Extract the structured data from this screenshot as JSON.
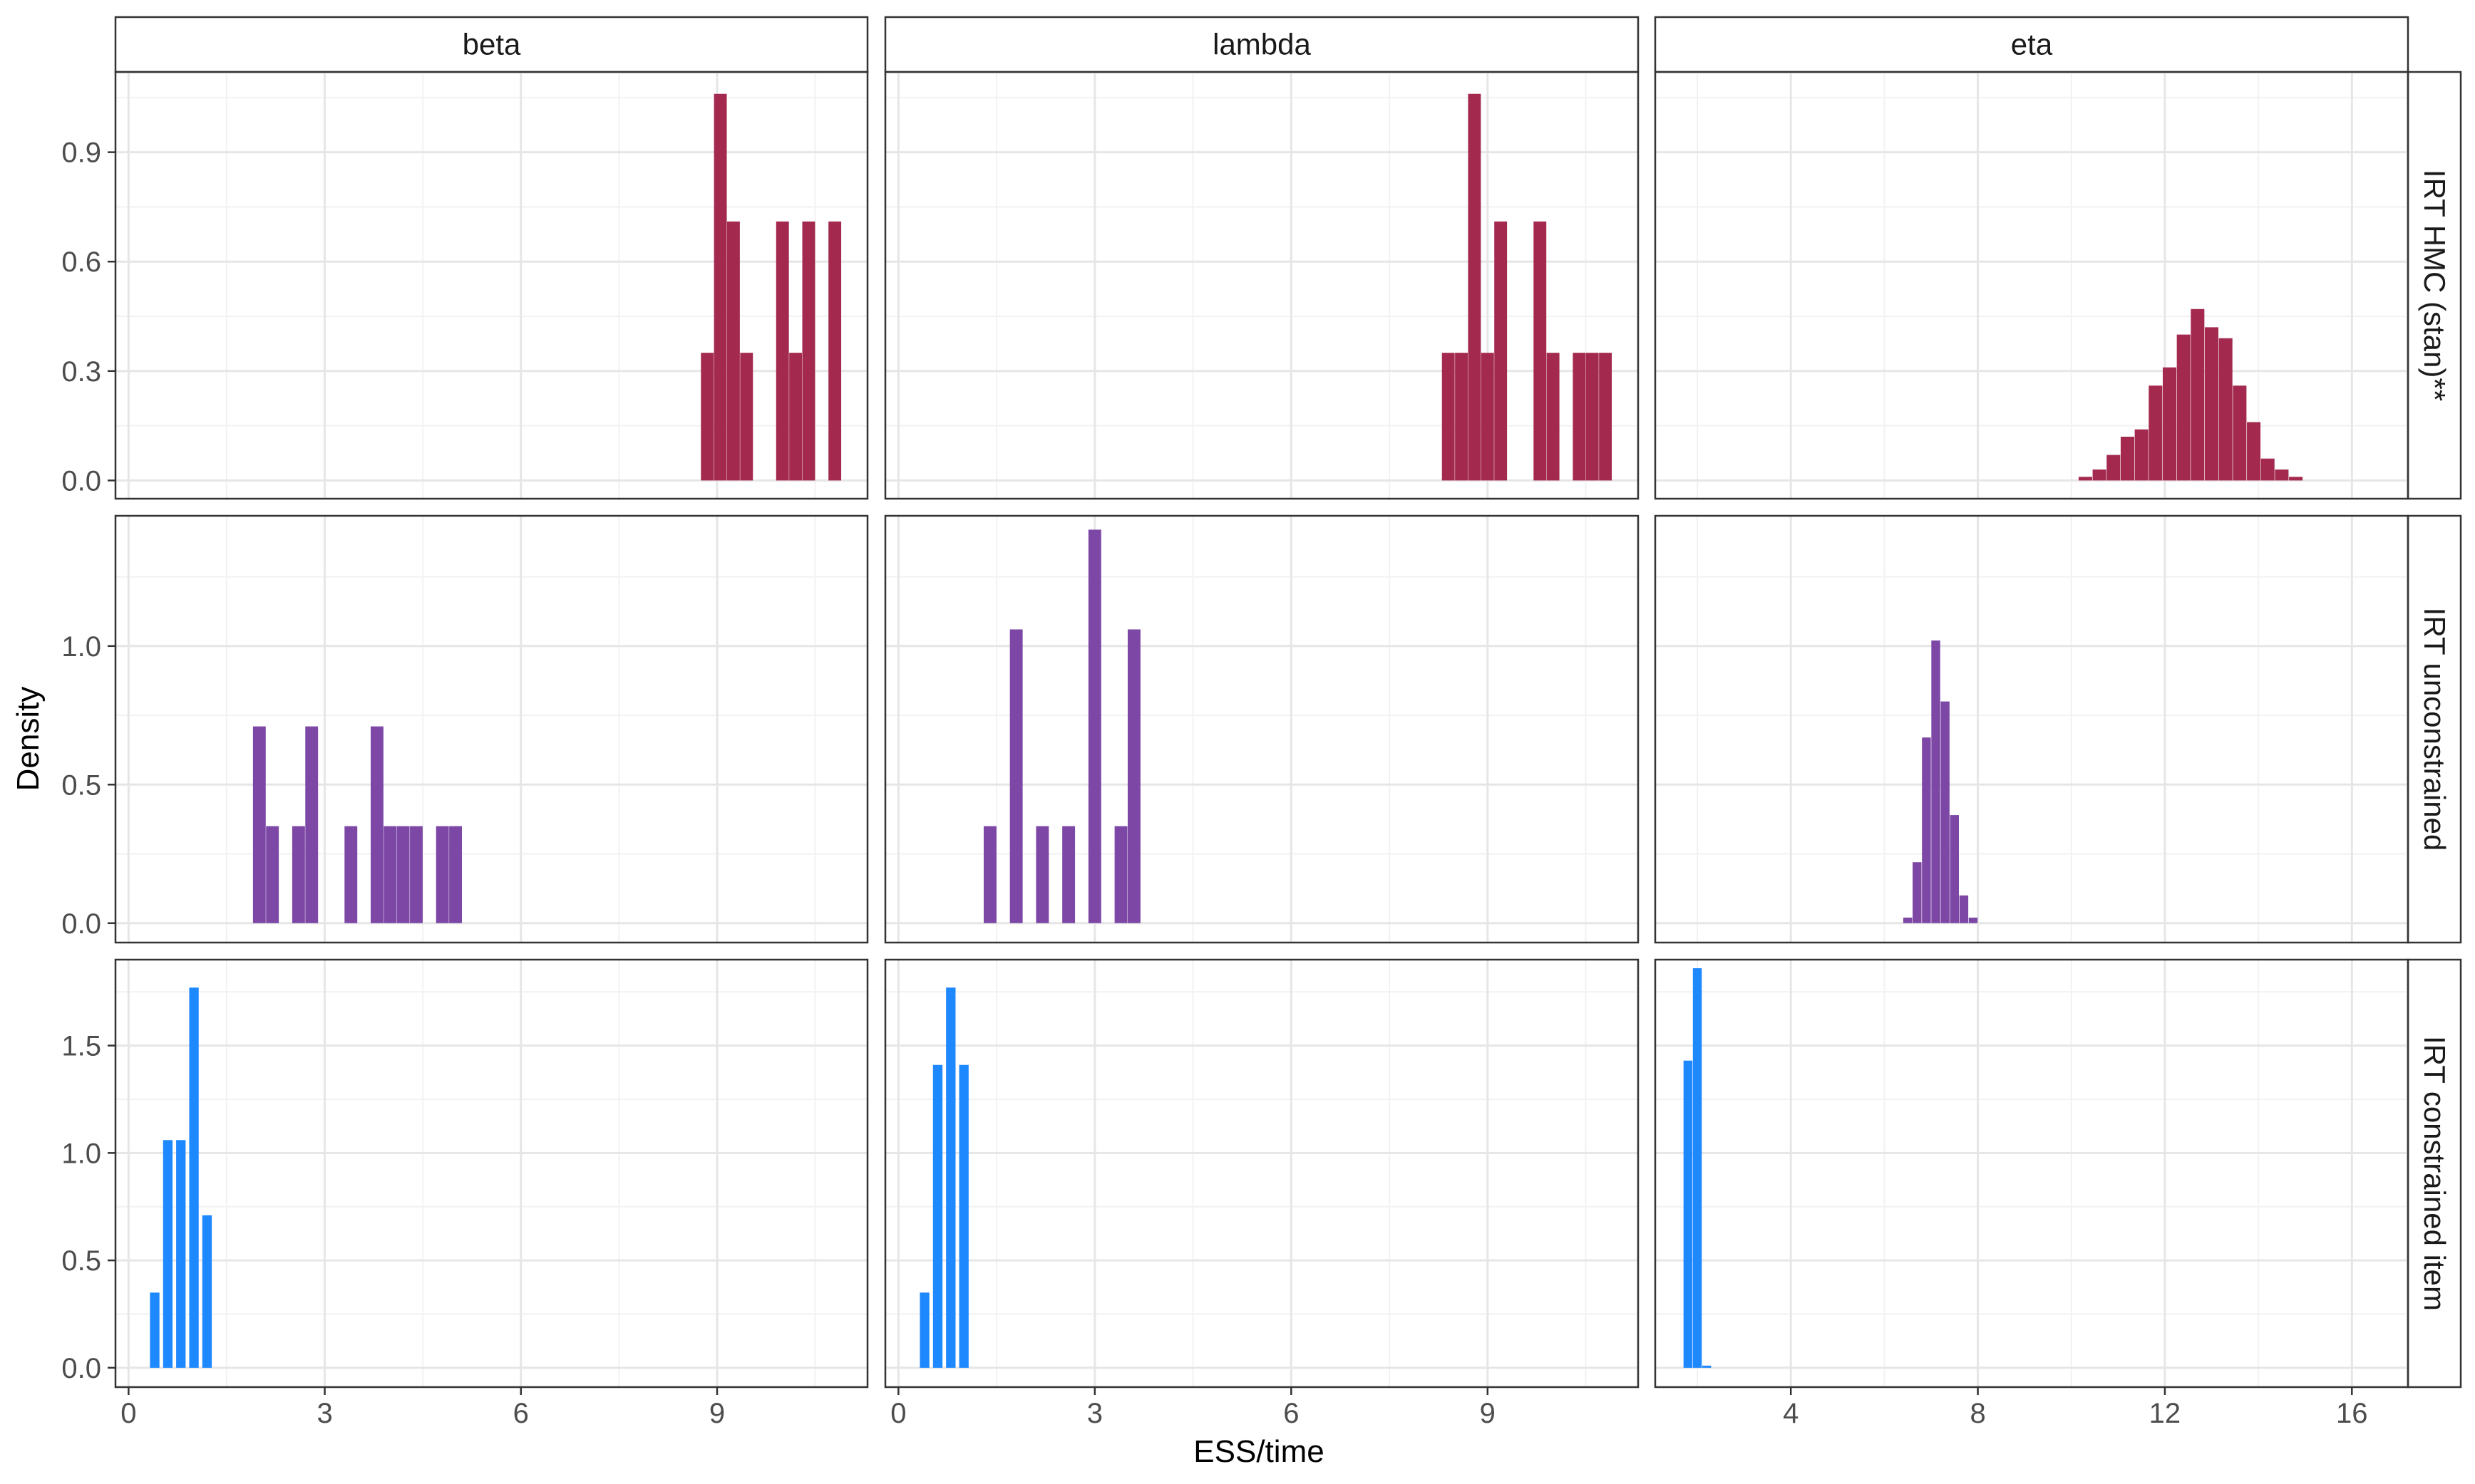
{
  "chart_data": {
    "type": "bar",
    "xlabel": "ESS/time",
    "ylabel": "Density",
    "grid": true,
    "legend": "none",
    "columns": [
      {
        "label": "beta",
        "xlim": [
          -0.2,
          11.3
        ],
        "xticks": [
          0,
          3,
          6,
          9
        ]
      },
      {
        "label": "lambda",
        "xlim": [
          -0.2,
          11.3
        ],
        "xticks": [
          0,
          3,
          6,
          9
        ]
      },
      {
        "label": "eta",
        "xlim": [
          1.1,
          17.2
        ],
        "xticks": [
          4,
          8,
          12,
          16
        ]
      }
    ],
    "rows": [
      {
        "label": "IRT HMC (stan)**",
        "color": "#A3294F",
        "ylim": [
          -0.05,
          1.12
        ],
        "yticks": [
          "0.0",
          "0.3",
          "0.6",
          "0.9"
        ]
      },
      {
        "label": "IRT unconstrained",
        "color": "#7D47A6",
        "ylim": [
          -0.07,
          1.47
        ],
        "yticks": [
          "0.0",
          "0.5",
          "1.0"
        ]
      },
      {
        "label": "IRT constrained item",
        "color": "#1E88FF",
        "ylim": [
          -0.09,
          1.9
        ],
        "yticks": [
          "0.0",
          "0.5",
          "1.0",
          "1.5"
        ]
      }
    ],
    "panels": [
      {
        "row": 0,
        "col": 0,
        "binwidth": 0.195,
        "bars": [
          {
            "x": 8.85,
            "y": 0.35
          },
          {
            "x": 9.05,
            "y": 1.06
          },
          {
            "x": 9.25,
            "y": 0.71
          },
          {
            "x": 9.45,
            "y": 0.35
          },
          {
            "x": 10.0,
            "y": 0.71
          },
          {
            "x": 10.2,
            "y": 0.35
          },
          {
            "x": 10.4,
            "y": 0.71
          },
          {
            "x": 10.8,
            "y": 0.71
          }
        ]
      },
      {
        "row": 0,
        "col": 1,
        "binwidth": 0.195,
        "bars": [
          {
            "x": 8.4,
            "y": 0.35
          },
          {
            "x": 8.6,
            "y": 0.35
          },
          {
            "x": 8.8,
            "y": 1.06
          },
          {
            "x": 9.0,
            "y": 0.35
          },
          {
            "x": 9.2,
            "y": 0.71
          },
          {
            "x": 9.8,
            "y": 0.71
          },
          {
            "x": 10.0,
            "y": 0.35
          },
          {
            "x": 10.4,
            "y": 0.35
          },
          {
            "x": 10.6,
            "y": 0.35
          },
          {
            "x": 10.8,
            "y": 0.35
          }
        ]
      },
      {
        "row": 0,
        "col": 2,
        "binwidth": 0.29,
        "bars": [
          {
            "x": 10.3,
            "y": 0.01
          },
          {
            "x": 10.6,
            "y": 0.03
          },
          {
            "x": 10.9,
            "y": 0.07
          },
          {
            "x": 11.2,
            "y": 0.12
          },
          {
            "x": 11.5,
            "y": 0.14
          },
          {
            "x": 11.8,
            "y": 0.26
          },
          {
            "x": 12.1,
            "y": 0.31
          },
          {
            "x": 12.4,
            "y": 0.4
          },
          {
            "x": 12.7,
            "y": 0.47
          },
          {
            "x": 13.0,
            "y": 0.42
          },
          {
            "x": 13.3,
            "y": 0.39
          },
          {
            "x": 13.6,
            "y": 0.26
          },
          {
            "x": 13.9,
            "y": 0.16
          },
          {
            "x": 14.2,
            "y": 0.06
          },
          {
            "x": 14.5,
            "y": 0.03
          },
          {
            "x": 14.8,
            "y": 0.01
          }
        ]
      },
      {
        "row": 1,
        "col": 0,
        "binwidth": 0.195,
        "bars": [
          {
            "x": 2.0,
            "y": 0.71
          },
          {
            "x": 2.2,
            "y": 0.35
          },
          {
            "x": 2.6,
            "y": 0.35
          },
          {
            "x": 2.8,
            "y": 0.71
          },
          {
            "x": 3.4,
            "y": 0.35
          },
          {
            "x": 3.8,
            "y": 0.71
          },
          {
            "x": 4.0,
            "y": 0.35
          },
          {
            "x": 4.2,
            "y": 0.35
          },
          {
            "x": 4.4,
            "y": 0.35
          },
          {
            "x": 4.8,
            "y": 0.35
          },
          {
            "x": 5.0,
            "y": 0.35
          }
        ]
      },
      {
        "row": 1,
        "col": 1,
        "binwidth": 0.195,
        "bars": [
          {
            "x": 1.4,
            "y": 0.35
          },
          {
            "x": 1.8,
            "y": 1.06
          },
          {
            "x": 2.2,
            "y": 0.35
          },
          {
            "x": 2.6,
            "y": 0.35
          },
          {
            "x": 3.0,
            "y": 1.42
          },
          {
            "x": 3.4,
            "y": 0.35
          },
          {
            "x": 3.6,
            "y": 1.06
          }
        ]
      },
      {
        "row": 1,
        "col": 2,
        "binwidth": 0.19,
        "bars": [
          {
            "x": 6.5,
            "y": 0.02
          },
          {
            "x": 6.7,
            "y": 0.22
          },
          {
            "x": 6.9,
            "y": 0.67
          },
          {
            "x": 7.1,
            "y": 1.02
          },
          {
            "x": 7.3,
            "y": 0.8
          },
          {
            "x": 7.5,
            "y": 0.39
          },
          {
            "x": 7.7,
            "y": 0.1
          },
          {
            "x": 7.9,
            "y": 0.02
          }
        ]
      },
      {
        "row": 2,
        "col": 0,
        "binwidth": 0.145,
        "bars": [
          {
            "x": 0.4,
            "y": 0.35
          },
          {
            "x": 0.6,
            "y": 1.06
          },
          {
            "x": 0.8,
            "y": 1.06
          },
          {
            "x": 1.0,
            "y": 1.77
          },
          {
            "x": 1.2,
            "y": 0.71
          }
        ]
      },
      {
        "row": 2,
        "col": 1,
        "binwidth": 0.145,
        "bars": [
          {
            "x": 0.4,
            "y": 0.35
          },
          {
            "x": 0.6,
            "y": 1.41
          },
          {
            "x": 0.8,
            "y": 1.77
          },
          {
            "x": 1.0,
            "y": 1.41
          }
        ]
      },
      {
        "row": 2,
        "col": 2,
        "binwidth": 0.19,
        "bars": [
          {
            "x": 1.8,
            "y": 1.43
          },
          {
            "x": 2.0,
            "y": 1.86
          },
          {
            "x": 2.2,
            "y": 0.01
          }
        ]
      }
    ]
  }
}
